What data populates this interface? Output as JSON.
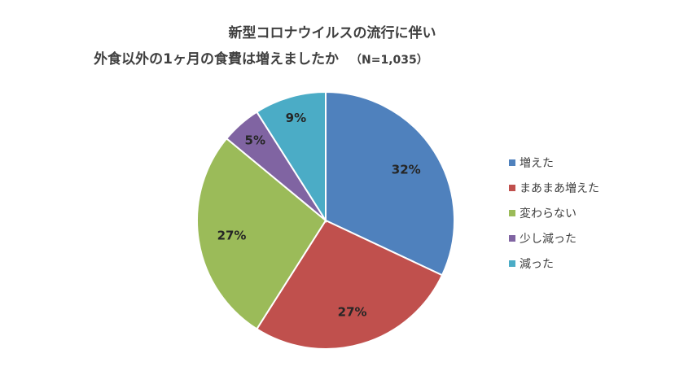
{
  "chart_data": {
    "type": "pie",
    "title_line1": "新型コロナウイルスの流行に伴い",
    "title_line2": "外食以外の1ヶ月の食費は増えましたか",
    "title_n": "（N=1,035）",
    "slices": [
      {
        "label": "増えた",
        "value": 32,
        "display": "32%",
        "color": "#4F81BD"
      },
      {
        "label": "まあまあ増えた",
        "value": 27,
        "display": "27%",
        "color": "#C0504D"
      },
      {
        "label": "変わらない",
        "value": 27,
        "display": "27%",
        "color": "#9BBB59"
      },
      {
        "label": "少し減った",
        "value": 5,
        "display": "5%",
        "color": "#8064A2"
      },
      {
        "label": "減った",
        "value": 9,
        "display": "9%",
        "color": "#4BACC6"
      }
    ],
    "legend_placement": "right",
    "start_angle": "12 o'clock",
    "direction": "clockwise"
  }
}
